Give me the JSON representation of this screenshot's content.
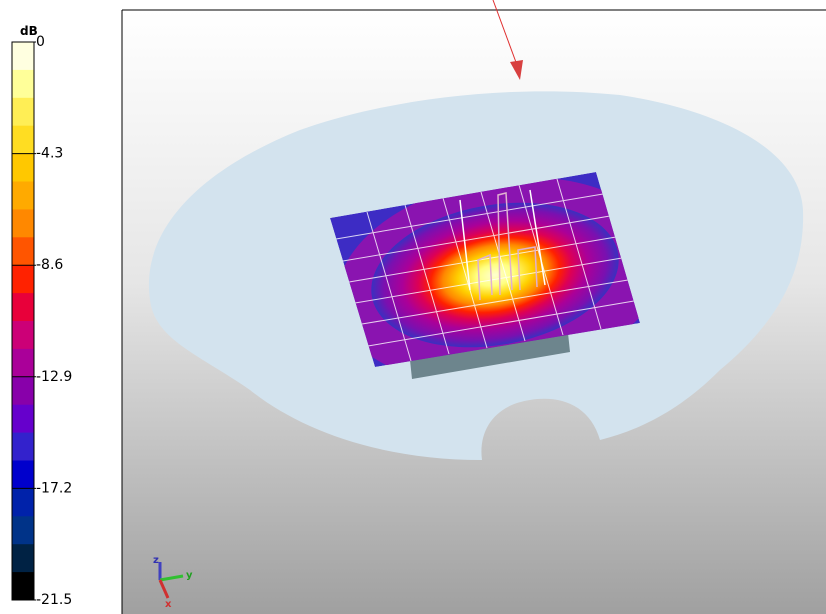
{
  "colorbar": {
    "unit": "dB",
    "ticks": [
      "0",
      "-4.3",
      "-8.6",
      "-12.9",
      "-17.2",
      "-21.5"
    ]
  },
  "axes": {
    "z": "z",
    "y": "y",
    "x": "x"
  }
}
